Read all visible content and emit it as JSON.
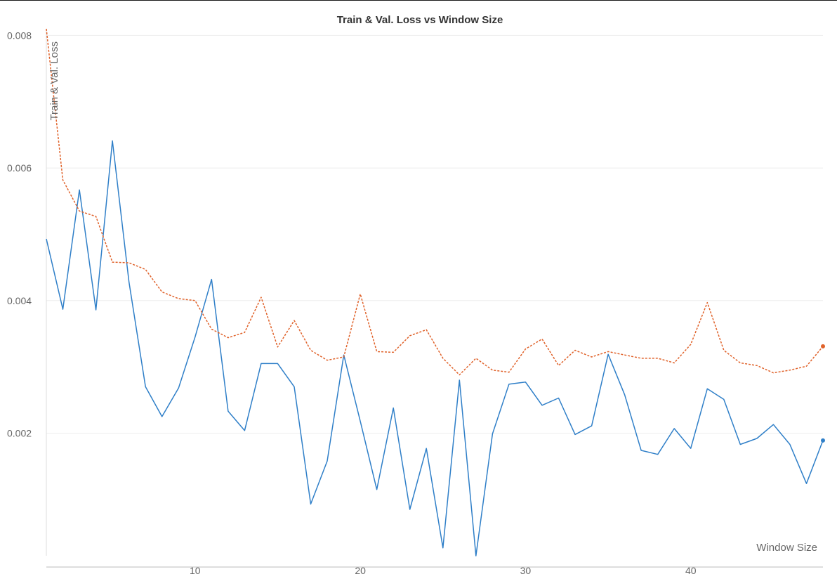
{
  "chart_data": {
    "type": "line",
    "title": "Train & Val. Loss vs Window Size",
    "xlabel": "Window Size",
    "ylabel": "Train & Val. Loss",
    "xlim": [
      1,
      48
    ],
    "ylim": [
      0.00015,
      0.0081
    ],
    "x_ticks": [
      10,
      20,
      30,
      40
    ],
    "x_tick_labels": [
      "10",
      "20",
      "30",
      "40"
    ],
    "y_ticks": [
      0.002,
      0.004,
      0.006,
      0.008
    ],
    "y_tick_labels": [
      "0.002",
      "0.004",
      "0.006",
      "0.008"
    ],
    "grid": "horizontal",
    "x": [
      1,
      2,
      3,
      4,
      5,
      6,
      7,
      8,
      9,
      10,
      11,
      12,
      13,
      14,
      15,
      16,
      17,
      18,
      19,
      20,
      21,
      22,
      23,
      24,
      25,
      26,
      27,
      28,
      29,
      30,
      31,
      32,
      33,
      34,
      35,
      36,
      37,
      38,
      39,
      40,
      41,
      42,
      43,
      44,
      45,
      46,
      47,
      48
    ],
    "series": [
      {
        "color": "#2f7fc8",
        "style": "solid",
        "values": [
          0.00493,
          0.00387,
          0.00567,
          0.00386,
          0.00641,
          0.00428,
          0.0027,
          0.00225,
          0.00268,
          0.00345,
          0.00432,
          0.00233,
          0.00204,
          0.00305,
          0.00305,
          0.0027,
          0.00093,
          0.00158,
          0.00318,
          0.00218,
          0.00115,
          0.00238,
          0.00085,
          0.00177,
          0.00027,
          0.0028,
          0.00015,
          0.00199,
          0.00274,
          0.00277,
          0.00242,
          0.00253,
          0.00198,
          0.00211,
          0.00319,
          0.00258,
          0.00174,
          0.00168,
          0.00207,
          0.00177,
          0.00267,
          0.00251,
          0.00183,
          0.00192,
          0.00213,
          0.00183,
          0.00124,
          0.00189
        ]
      },
      {
        "color": "#e0622a",
        "style": "dashed",
        "values": [
          0.0081,
          0.00582,
          0.00535,
          0.00527,
          0.00458,
          0.00457,
          0.00447,
          0.00413,
          0.00403,
          0.004,
          0.00357,
          0.00344,
          0.00352,
          0.00405,
          0.0033,
          0.0037,
          0.00325,
          0.0031,
          0.00315,
          0.0041,
          0.00323,
          0.00322,
          0.00347,
          0.00356,
          0.00313,
          0.00288,
          0.00313,
          0.00295,
          0.00292,
          0.00327,
          0.00342,
          0.00302,
          0.00325,
          0.00315,
          0.00323,
          0.00318,
          0.00313,
          0.00313,
          0.00306,
          0.00334,
          0.00397,
          0.00325,
          0.00306,
          0.00302,
          0.00291,
          0.00295,
          0.00301,
          0.00331
        ]
      }
    ]
  }
}
